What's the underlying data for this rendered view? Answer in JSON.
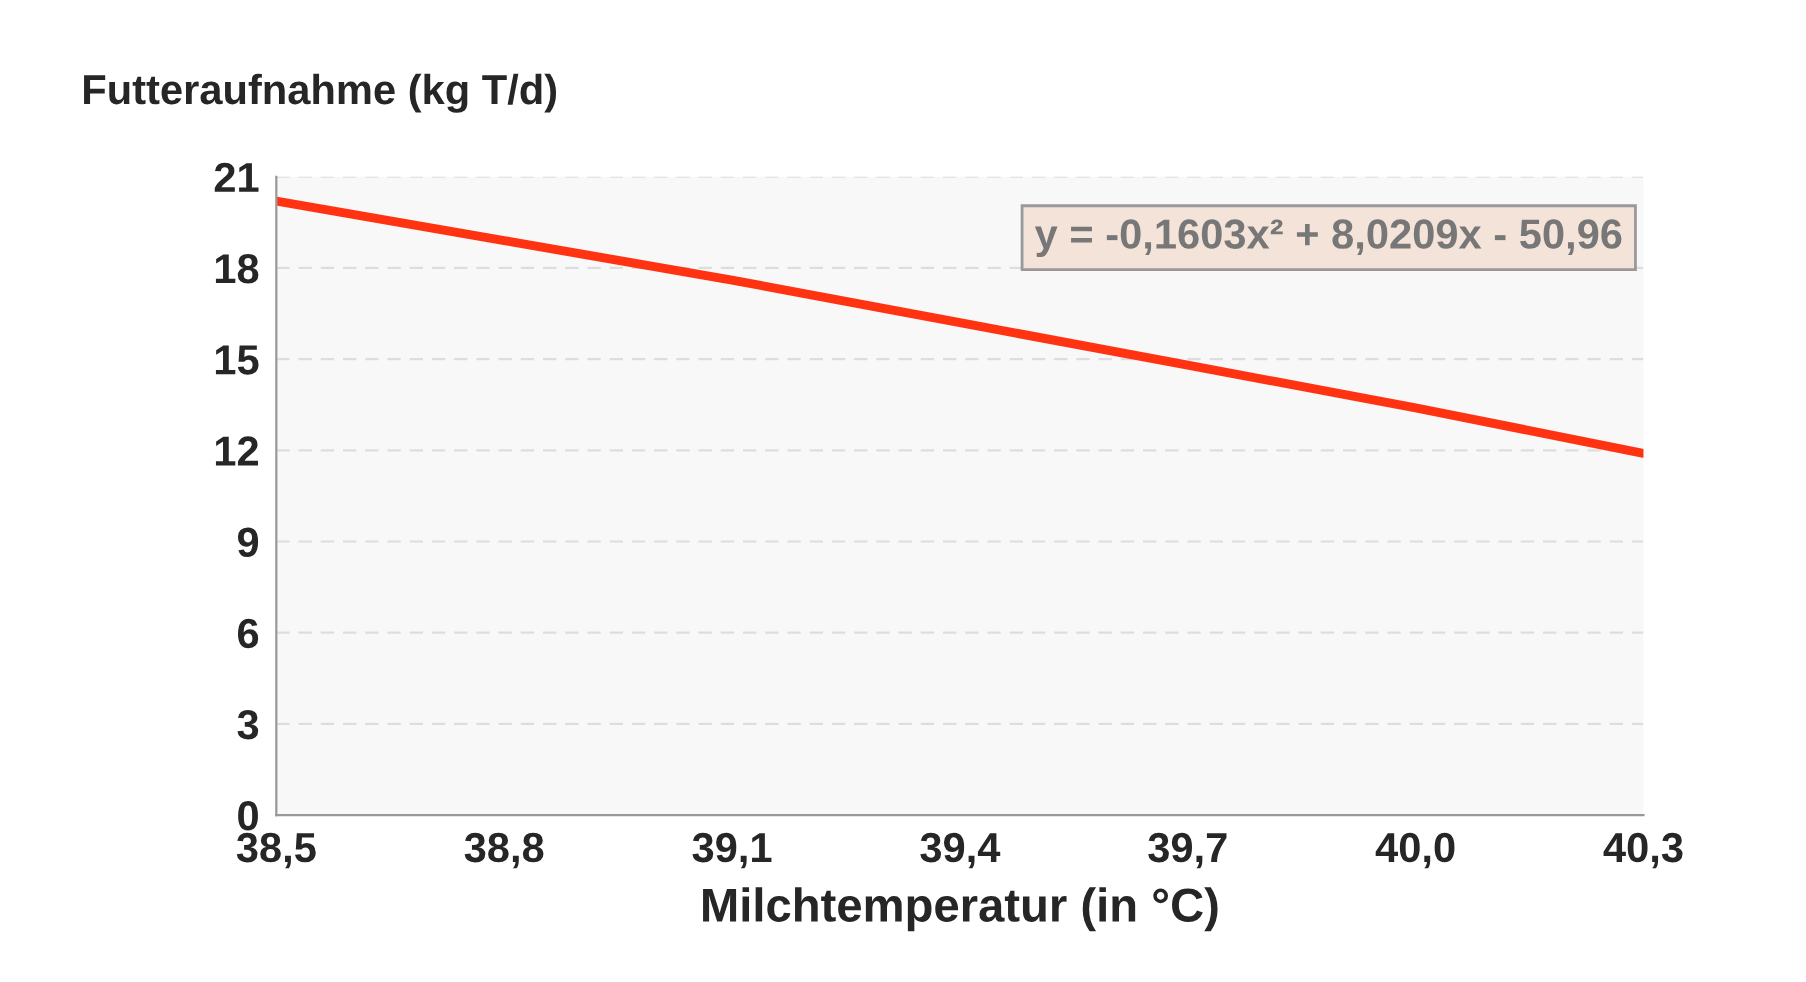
{
  "chart_data": {
    "type": "line",
    "ylabel": "Futteraufnahme (kg T/d)",
    "xlabel": "Milchtemperatur (in °C)",
    "x": [
      38.5,
      38.8,
      39.1,
      39.4,
      39.7,
      40.0,
      40.3
    ],
    "series": [
      {
        "color": "#ff3311",
        "values": [
          20.2,
          18.9,
          17.6,
          16.2,
          14.8,
          13.4,
          11.9
        ]
      }
    ],
    "xlim": [
      38.5,
      40.3
    ],
    "xticks": [
      {
        "value": 38.5,
        "label": "38,5"
      },
      {
        "value": 38.8,
        "label": "38,8"
      },
      {
        "value": 39.1,
        "label": "39,1"
      },
      {
        "value": 39.4,
        "label": "39,4"
      },
      {
        "value": 39.7,
        "label": "39,7"
      },
      {
        "value": 40.0,
        "label": "40,0"
      },
      {
        "value": 40.3,
        "label": "40,3"
      }
    ],
    "ylim": [
      0,
      21
    ],
    "yticks": [
      0,
      3,
      6,
      9,
      12,
      15,
      18,
      21
    ],
    "grid": "y",
    "marker": "none",
    "line_style": "solid",
    "annotations": [
      "y = -0,1603x² + 8,0209x - 50,96"
    ]
  }
}
